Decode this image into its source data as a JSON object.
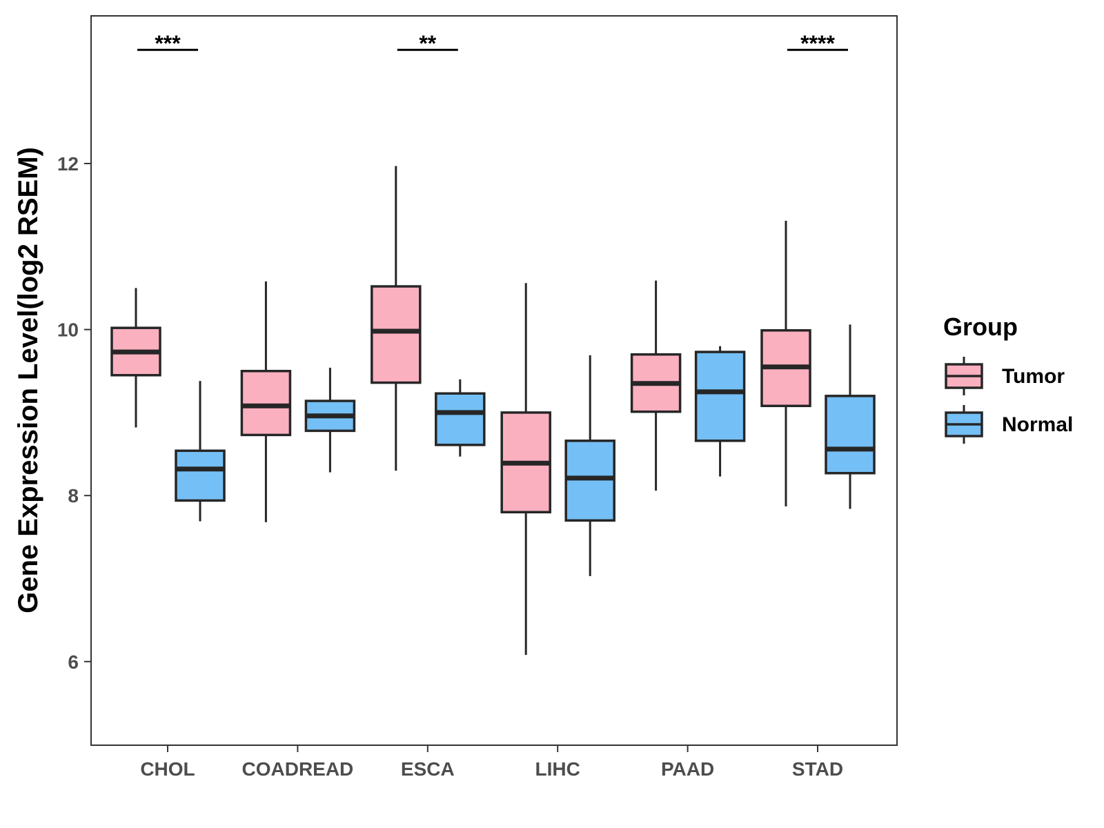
{
  "chart_data": {
    "type": "boxplot",
    "ylabel": "Gene Expression Level(log2 RSEM)",
    "xlabel": "",
    "ylim": [
      5.0,
      13.8
    ],
    "yticks": [
      6,
      8,
      10,
      12
    ],
    "categories": [
      "CHOL",
      "COADREAD",
      "ESCA",
      "LIHC",
      "PAAD",
      "STAD"
    ],
    "legend": {
      "title": "Group",
      "position": "right",
      "entries": [
        {
          "name": "Tumor",
          "color": "#fbb0c0"
        },
        {
          "name": "Normal",
          "color": "#74bff5"
        }
      ]
    },
    "series": [
      {
        "name": "Tumor",
        "color": "#fbb0c0",
        "boxes": [
          {
            "category": "CHOL",
            "whisker_low": 8.82,
            "q1": 9.45,
            "median": 9.73,
            "q3": 10.02,
            "whisker_high": 10.5
          },
          {
            "category": "COADREAD",
            "whisker_low": 7.68,
            "q1": 8.73,
            "median": 9.08,
            "q3": 9.5,
            "whisker_high": 10.58
          },
          {
            "category": "ESCA",
            "whisker_low": 8.3,
            "q1": 9.36,
            "median": 9.98,
            "q3": 10.52,
            "whisker_high": 11.97
          },
          {
            "category": "LIHC",
            "whisker_low": 6.08,
            "q1": 7.8,
            "median": 8.39,
            "q3": 9.0,
            "whisker_high": 10.56
          },
          {
            "category": "PAAD",
            "whisker_low": 8.06,
            "q1": 9.01,
            "median": 9.35,
            "q3": 9.7,
            "whisker_high": 10.59
          },
          {
            "category": "STAD",
            "whisker_low": 7.87,
            "q1": 9.08,
            "median": 9.55,
            "q3": 9.99,
            "whisker_high": 11.31
          }
        ]
      },
      {
        "name": "Normal",
        "color": "#74bff5",
        "boxes": [
          {
            "category": "CHOL",
            "whisker_low": 7.69,
            "q1": 7.94,
            "median": 8.32,
            "q3": 8.54,
            "whisker_high": 9.38
          },
          {
            "category": "COADREAD",
            "whisker_low": 8.28,
            "q1": 8.78,
            "median": 8.96,
            "q3": 9.14,
            "whisker_high": 9.54
          },
          {
            "category": "ESCA",
            "whisker_low": 8.47,
            "q1": 8.61,
            "median": 9.0,
            "q3": 9.23,
            "whisker_high": 9.4
          },
          {
            "category": "LIHC",
            "whisker_low": 7.03,
            "q1": 7.7,
            "median": 8.21,
            "q3": 8.66,
            "whisker_high": 9.69
          },
          {
            "category": "PAAD",
            "whisker_low": 8.23,
            "q1": 8.66,
            "median": 9.25,
            "q3": 9.73,
            "whisker_high": 9.8
          },
          {
            "category": "STAD",
            "whisker_low": 7.84,
            "q1": 8.27,
            "median": 8.56,
            "q3": 9.2,
            "whisker_high": 10.06
          }
        ]
      }
    ],
    "annotations": [
      {
        "category": "CHOL",
        "label": "***",
        "y": 13.37
      },
      {
        "category": "ESCA",
        "label": "**",
        "y": 13.37
      },
      {
        "category": "STAD",
        "label": "****",
        "y": 13.37
      }
    ]
  }
}
